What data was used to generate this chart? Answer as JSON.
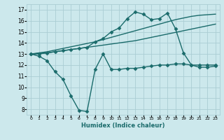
{
  "xlabel": "Humidex (Indice chaleur)",
  "bg_color": "#cce8ec",
  "grid_color": "#aacdd4",
  "line_color": "#1a6b6b",
  "xlim": [
    -0.5,
    23.5
  ],
  "ylim": [
    7.5,
    17.5
  ],
  "x_ticks": [
    0,
    1,
    2,
    3,
    4,
    5,
    6,
    7,
    8,
    9,
    10,
    11,
    12,
    13,
    14,
    15,
    16,
    17,
    18,
    19,
    20,
    21,
    22,
    23
  ],
  "y_ticks": [
    8,
    9,
    10,
    11,
    12,
    13,
    14,
    15,
    16,
    17
  ],
  "series": [
    {
      "x": [
        0,
        1,
        2,
        3,
        4,
        5,
        6,
        7,
        8,
        9,
        10,
        11,
        12,
        13,
        14,
        15,
        16,
        17,
        18,
        19,
        20,
        21,
        22,
        23
      ],
      "y": [
        13.0,
        12.8,
        12.4,
        11.4,
        10.7,
        9.2,
        7.9,
        7.8,
        11.6,
        13.0,
        11.6,
        11.6,
        11.7,
        11.7,
        11.8,
        11.9,
        12.0,
        12.0,
        12.1,
        12.1,
        12.0,
        11.8,
        11.8,
        11.9
      ],
      "marker": "D",
      "markersize": 2.5,
      "linewidth": 1.0
    },
    {
      "x": [
        0,
        1,
        2,
        3,
        4,
        5,
        6,
        7,
        8,
        9,
        10,
        11,
        12,
        13,
        14,
        15,
        16,
        17,
        18,
        19,
        20,
        21,
        22,
        23
      ],
      "y": [
        13.0,
        13.05,
        13.1,
        13.2,
        13.3,
        13.4,
        13.5,
        13.6,
        13.7,
        13.8,
        13.9,
        14.0,
        14.1,
        14.2,
        14.35,
        14.5,
        14.65,
        14.8,
        14.95,
        15.1,
        15.25,
        15.4,
        15.55,
        15.7
      ],
      "marker": null,
      "markersize": 0,
      "linewidth": 1.0
    },
    {
      "x": [
        0,
        1,
        2,
        3,
        4,
        5,
        6,
        7,
        8,
        9,
        10,
        11,
        12,
        13,
        14,
        15,
        16,
        17,
        18,
        19,
        20,
        21,
        22,
        23
      ],
      "y": [
        13.0,
        13.1,
        13.2,
        13.35,
        13.5,
        13.65,
        13.8,
        13.95,
        14.1,
        14.3,
        14.5,
        14.7,
        14.9,
        15.1,
        15.3,
        15.5,
        15.7,
        15.9,
        16.1,
        16.25,
        16.4,
        16.5,
        16.55,
        16.6
      ],
      "marker": null,
      "markersize": 0,
      "linewidth": 1.0
    },
    {
      "x": [
        0,
        1,
        2,
        3,
        4,
        5,
        6,
        7,
        8,
        9,
        10,
        11,
        12,
        13,
        14,
        15,
        16,
        17,
        18,
        19,
        20,
        21,
        22,
        23
      ],
      "y": [
        13.0,
        13.0,
        13.1,
        13.2,
        13.3,
        13.4,
        13.5,
        13.6,
        14.1,
        14.4,
        15.0,
        15.35,
        16.2,
        16.8,
        16.6,
        16.1,
        16.2,
        16.7,
        15.3,
        13.1,
        12.0,
        12.0,
        12.0,
        12.0
      ],
      "marker": "D",
      "markersize": 2.5,
      "linewidth": 1.0
    }
  ]
}
